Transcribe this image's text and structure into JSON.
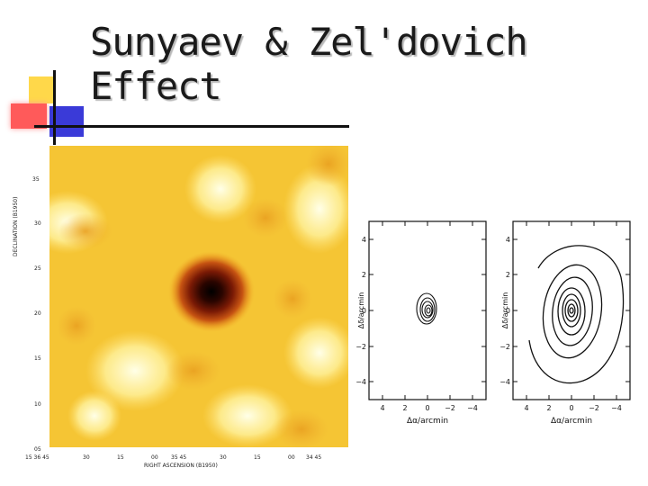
{
  "slide": {
    "title": "Sunyaev & Zel'dovich Effect"
  },
  "map": {
    "y_axis_title": "DECLINATION (B1950)",
    "x_axis_title": "RIGHT ASCENSION (B1950)",
    "y_tick_labels": [
      "35",
      "30",
      "25",
      "20",
      "15",
      "10",
      "05"
    ],
    "x_tick_labels": [
      "15 36 45",
      "30",
      "15",
      "00",
      "35 45",
      "30",
      "15",
      "00",
      "34 45"
    ]
  },
  "panels": [
    {
      "name": "contour-panel-left",
      "x_label": "Δα/arcmin",
      "y_label": "Δδ/arcmin",
      "y_ticks": [
        "4",
        "2",
        "0",
        "−2",
        "−4"
      ],
      "x_ticks": [
        "4",
        "2",
        "0",
        "−2",
        "−4"
      ]
    },
    {
      "name": "contour-panel-right",
      "x_label": "Δα/arcmin",
      "y_label": "Δδ/arcmin",
      "y_ticks": [
        "4",
        "2",
        "0",
        "−2",
        "−4"
      ],
      "x_ticks": [
        "4",
        "2",
        "0",
        "−2",
        "−4"
      ]
    }
  ]
}
